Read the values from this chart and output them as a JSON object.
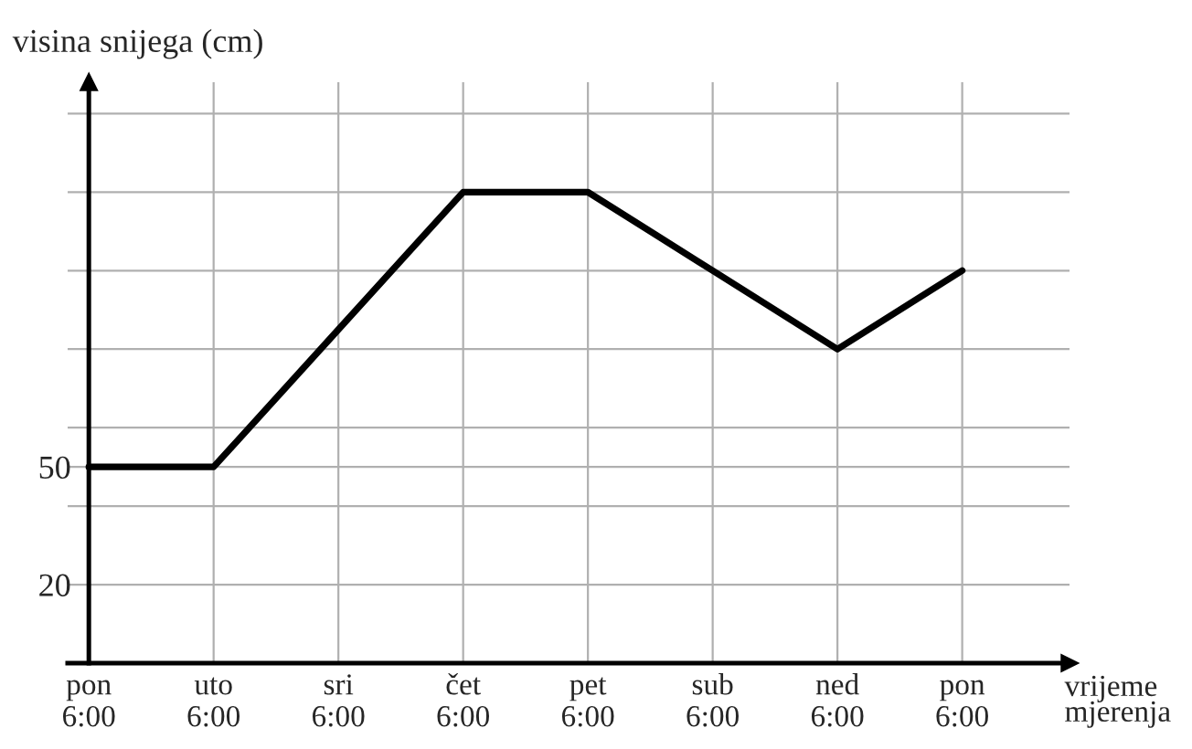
{
  "chart_data": {
    "type": "line",
    "xlabel": "vrijeme\nmjerenja",
    "ylabel": "visina snijega (cm)",
    "categories": [
      "pon\n6:00",
      "uto\n6:00",
      "sri\n6:00",
      "čet\n6:00",
      "pet\n6:00",
      "sub\n6:00",
      "ned\n6:00",
      "pon\n6:00"
    ],
    "series": [
      {
        "color": "#000000",
        "values": [
          50,
          50,
          85,
          120,
          120,
          100,
          80,
          100
        ]
      }
    ],
    "ylim": [
      0,
      148
    ],
    "yticks": [
      20,
      {
        "value": 40,
        "label": null
      },
      50,
      {
        "value": 60,
        "label": null
      },
      {
        "value": 80,
        "label": null
      },
      {
        "value": 100,
        "label": null
      },
      {
        "value": 120,
        "label": null
      },
      {
        "value": 140,
        "label": null
      }
    ],
    "grid": true,
    "marker": "none",
    "line_style": "solid"
  }
}
